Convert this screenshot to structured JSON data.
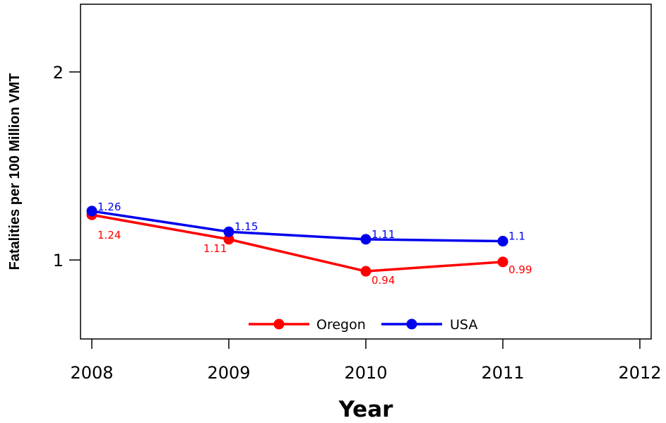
{
  "chart_data": {
    "type": "line",
    "title": "",
    "xlabel": "Year",
    "ylabel": "Fatalities per 100 Million VMT",
    "x": [
      2008,
      2009,
      2010,
      2011
    ],
    "xlim": [
      2008,
      2012
    ],
    "ylim": [
      0.58,
      2.36
    ],
    "x_ticks": [
      2008,
      2009,
      2010,
      2011,
      2012
    ],
    "y_ticks": [
      1,
      2
    ],
    "grid": false,
    "legend_position": "bottom-center",
    "series": [
      {
        "name": "Oregon",
        "color": "#ff0000",
        "values": [
          1.24,
          1.11,
          0.94,
          0.99
        ],
        "labels": [
          "1.24",
          "1.11",
          "0.94",
          "0.99"
        ]
      },
      {
        "name": "USA",
        "color": "#0000ee",
        "values": [
          1.26,
          1.15,
          1.11,
          1.1
        ],
        "labels": [
          "1.26",
          "1.15",
          "1.11",
          "1.1"
        ]
      }
    ]
  }
}
